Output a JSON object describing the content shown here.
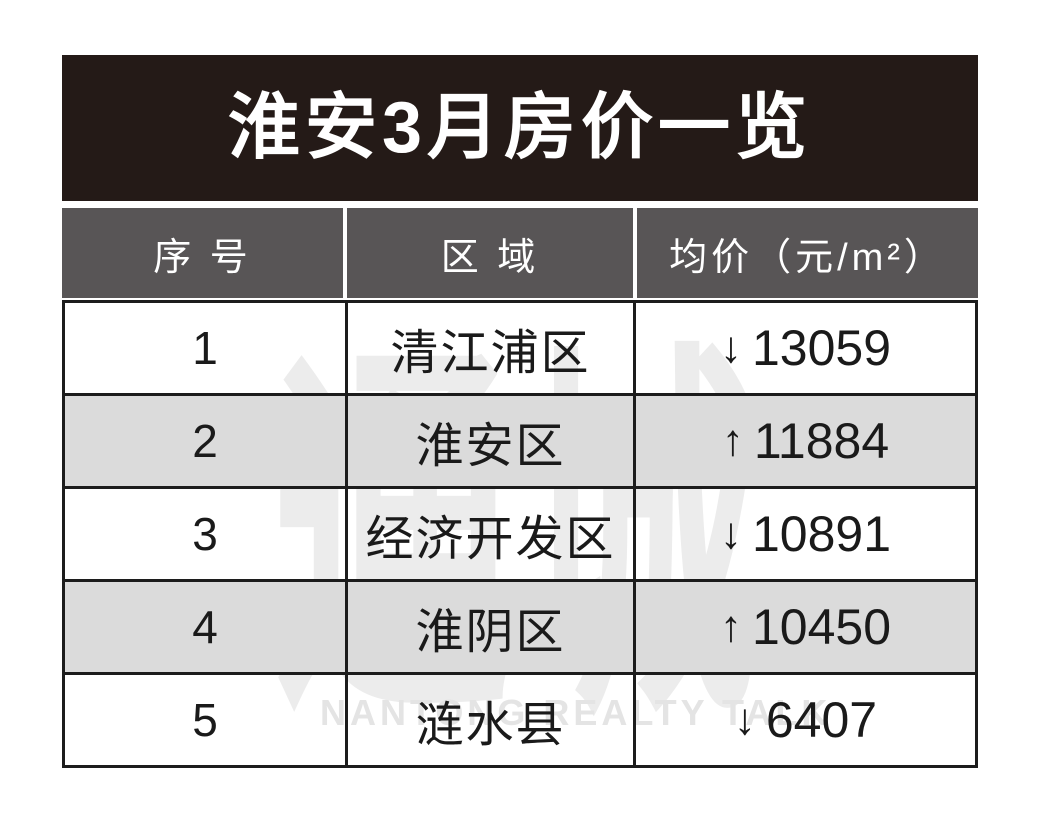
{
  "title": "淮安3月房价一览",
  "watermark": {
    "glyphs": "通城",
    "text": "NANTONG REALTY TALK"
  },
  "table": {
    "columns": [
      "序 号",
      "区 域",
      "均价（元/m²）"
    ],
    "rows": [
      {
        "no": "1",
        "region": "清江浦区",
        "direction": "down",
        "arrow": "↓",
        "price": "13059"
      },
      {
        "no": "2",
        "region": "淮安区",
        "direction": "up",
        "arrow": "↑",
        "price": "11884"
      },
      {
        "no": "3",
        "region": "经济开发区",
        "direction": "down",
        "arrow": "↓",
        "price": "10891"
      },
      {
        "no": "4",
        "region": "淮阴区",
        "direction": "up",
        "arrow": "↑",
        "price": "10450"
      },
      {
        "no": "5",
        "region": "涟水县",
        "direction": "down",
        "arrow": "↓",
        "price": "6407"
      }
    ]
  },
  "colors": {
    "title_bg": "#241a17",
    "header_bg": "#585556",
    "alt_row_bg": "#dbdbdb",
    "border": "#1c1c1c",
    "text": "#1a1a1a",
    "watermark": "#ececec"
  },
  "chart_data": {
    "type": "table",
    "title": "淮安3月房价一览",
    "columns": [
      "序 号",
      "区 域",
      "均价（元/m²）"
    ],
    "categories": [
      "清江浦区",
      "淮安区",
      "经济开发区",
      "淮阴区",
      "涟水县"
    ],
    "values": [
      13059,
      11884,
      10891,
      10450,
      6407
    ],
    "directions": [
      "down",
      "up",
      "down",
      "up",
      "down"
    ],
    "unit": "元/m²"
  }
}
